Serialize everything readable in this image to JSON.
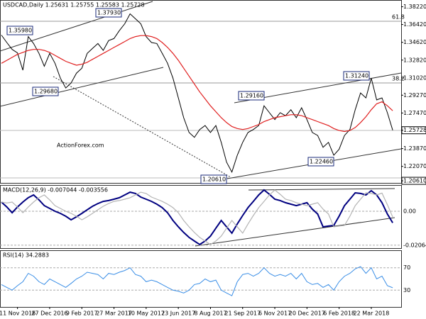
{
  "chart_data": [
    {
      "type": "line",
      "title": "USDCAD,Daily  1.25631 1.25755 1.25583 1.25728",
      "categories": [
        null,
        null,
        null,
        "11 Nov 2016",
        null,
        null,
        null,
        null,
        null,
        "27 Dec 2016",
        null,
        null,
        null,
        null,
        null,
        "9 Feb 2017",
        null,
        null,
        null,
        null,
        null,
        "27 Mar 2017",
        null,
        null,
        null,
        null,
        null,
        "10 May 2017",
        null,
        null,
        null,
        null,
        null,
        "23 Jun 2017",
        null,
        null,
        null,
        null,
        null,
        "8 Aug 2017",
        null,
        null,
        null,
        null,
        null,
        "21 Sep 2017",
        null,
        null,
        null,
        null,
        null,
        "6 Nov 2017",
        null,
        null,
        null,
        null,
        null,
        "20 Dec 2017",
        null,
        null,
        null,
        null,
        null,
        "6 Feb 2018",
        null,
        null,
        null,
        null,
        null,
        "22 Mar 2018",
        null,
        null,
        null,
        null
      ],
      "series": [
        {
          "color": "#000000",
          "values": [
            1.3535,
            1.346,
            1.339,
            1.3355,
            1.318,
            1.352,
            1.345,
            1.335,
            1.322,
            1.335,
            1.325,
            1.31,
            1.3,
            1.305,
            1.315,
            1.32,
            1.335,
            1.34,
            1.345,
            1.338,
            1.348,
            1.35,
            1.358,
            1.365,
            1.375,
            1.37,
            1.365,
            1.352,
            1.346,
            1.345,
            1.335,
            1.325,
            1.31,
            1.29,
            1.27,
            1.255,
            1.25,
            1.258,
            1.262,
            1.255,
            1.262,
            1.245,
            1.225,
            1.215,
            1.232,
            1.245,
            1.255,
            1.258,
            1.262,
            1.282,
            1.275,
            1.268,
            1.275,
            1.272,
            1.278,
            1.27,
            1.28,
            1.268,
            1.255,
            1.252,
            1.24,
            1.245,
            1.232,
            1.238,
            1.252,
            1.258,
            1.278,
            1.295,
            1.29,
            1.31,
            1.288,
            1.29,
            1.275,
            1.25728
          ]
        },
        {
          "color": "#e02020",
          "values": [
            1.325,
            1.328,
            1.331,
            1.334,
            1.336,
            1.338,
            1.339,
            1.339,
            1.338,
            1.336,
            1.333,
            1.33,
            1.327,
            1.325,
            1.323,
            1.324,
            1.326,
            1.329,
            1.332,
            1.335,
            1.338,
            1.341,
            1.344,
            1.347,
            1.35,
            1.352,
            1.353,
            1.353,
            1.352,
            1.35,
            1.346,
            1.341,
            1.335,
            1.328,
            1.32,
            1.312,
            1.304,
            1.296,
            1.289,
            1.282,
            1.276,
            1.27,
            1.265,
            1.261,
            1.259,
            1.258,
            1.259,
            1.261,
            1.263,
            1.266,
            1.268,
            1.27,
            1.271,
            1.272,
            1.273,
            1.273,
            1.272,
            1.27,
            1.268,
            1.266,
            1.264,
            1.262,
            1.259,
            1.257,
            1.256,
            1.257,
            1.26,
            1.265,
            1.271,
            1.278,
            1.284,
            1.286,
            1.282,
            1.277
          ]
        }
      ],
      "ylim": [
        1.204,
        1.389
      ],
      "yticks": [
        {
          "value": 1.3822,
          "label": "1.38220"
        },
        {
          "value": 1.3642,
          "label": "1.36420"
        },
        {
          "value": 1.3462,
          "label": "1.34620"
        },
        {
          "value": 1.3282,
          "label": "1.32820"
        },
        {
          "value": 1.3102,
          "label": "1.31020"
        },
        {
          "value": 1.2927,
          "label": "1.29270"
        },
        {
          "value": 1.2747,
          "label": "1.27470"
        },
        {
          "value": 1.25728,
          "label": "1.25728"
        },
        {
          "value": 1.2387,
          "label": "1.23870"
        },
        {
          "value": 1.2207,
          "label": "1.22070"
        },
        {
          "value": 1.2061,
          "label": "1.20610"
        }
      ],
      "annotations": [
        "1.35980",
        "1.37930",
        "1.29680",
        "1.29160",
        "1.31240",
        "1.22460",
        "1.20610",
        "61.8",
        "38.2",
        "ActionForex.com"
      ]
    },
    {
      "type": "line",
      "title": "MACD(12,26,9) -0.007044 -0.003556",
      "series": [
        {
          "color": "#000080",
          "values": [
            0.0056,
            0.0026,
            -0.0009,
            0.0026,
            0.0056,
            0.0082,
            0.0099,
            0.0069,
            0.0034,
            0.0017,
            0.0,
            -0.0013,
            -0.003,
            -0.0052,
            -0.0034,
            -0.0013,
            0.0009,
            0.003,
            0.0047,
            0.006,
            0.0065,
            0.0073,
            0.0082,
            0.0099,
            0.0116,
            0.0108,
            0.0086,
            0.0073,
            0.006,
            0.0043,
            0.0022,
            -0.0009,
            -0.0056,
            -0.0095,
            -0.0129,
            -0.0159,
            -0.0181,
            -0.0202,
            -0.0181,
            -0.0151,
            -0.0103,
            -0.0056,
            -0.0095,
            -0.0133,
            -0.0077,
            -0.0026,
            0.0022,
            0.006,
            0.0099,
            0.0129,
            0.0103,
            0.0073,
            0.0065,
            0.0052,
            0.0043,
            0.0034,
            0.0043,
            0.0052,
            0.0013,
            -0.0017,
            -0.0095,
            -0.009,
            -0.0086,
            -0.003,
            0.0034,
            0.0073,
            0.0112,
            0.0108,
            0.0099,
            0.0125,
            0.0099,
            0.0052,
            -0.0017,
            -0.007044
          ]
        },
        {
          "color": "#b4b4b4",
          "values": [
            0.0056,
            0.005,
            0.0056,
            0.0026,
            -0.0009,
            0.0026,
            0.0056,
            0.0082,
            0.0099,
            0.0069,
            0.0034,
            0.0017,
            0.0,
            -0.0013,
            -0.003,
            -0.0052,
            -0.0034,
            -0.0013,
            0.0009,
            0.003,
            0.0047,
            0.006,
            0.0065,
            0.0073,
            0.0082,
            0.0099,
            0.0116,
            0.0108,
            0.0086,
            0.0073,
            0.006,
            0.0043,
            0.0022,
            -0.0009,
            -0.0056,
            -0.0095,
            -0.0129,
            -0.0159,
            -0.0181,
            -0.0202,
            -0.0181,
            -0.0151,
            -0.0103,
            -0.0056,
            -0.0095,
            -0.0133,
            -0.0077,
            -0.0026,
            0.0022,
            0.006,
            0.0099,
            0.0129,
            0.0103,
            0.0073,
            0.0065,
            0.0052,
            0.0043,
            0.0034,
            0.0043,
            0.0052,
            0.0013,
            -0.0017,
            -0.0095,
            -0.009,
            -0.0086,
            -0.003,
            0.0034,
            0.0073,
            0.0112,
            0.0108,
            0.0099,
            0.011,
            0.004,
            -0.003556
          ]
        }
      ],
      "ylim": [
        -0.0224,
        0.0155
      ],
      "yticks": [
        {
          "value": 0,
          "label": "0.00"
        },
        {
          "value": -0.020648,
          "label": "-0.020648"
        }
      ]
    },
    {
      "type": "line",
      "title": "RSI(14) 34.2883",
      "series": [
        {
          "color": "#3a8ee6",
          "values": [
            40,
            35,
            30,
            38,
            45,
            60,
            55,
            45,
            40,
            50,
            45,
            40,
            35,
            42,
            50,
            55,
            62,
            60,
            58,
            50,
            60,
            58,
            62,
            65,
            70,
            58,
            55,
            45,
            48,
            45,
            40,
            35,
            30,
            28,
            25,
            30,
            40,
            42,
            50,
            45,
            48,
            30,
            25,
            20,
            45,
            58,
            60,
            55,
            60,
            70,
            60,
            55,
            58,
            55,
            60,
            50,
            60,
            45,
            40,
            42,
            35,
            40,
            30,
            45,
            55,
            60,
            68,
            72,
            60,
            70,
            50,
            55,
            38,
            34.2883
          ]
        }
      ],
      "ylim": [
        0,
        100
      ],
      "yticks": [
        70,
        30
      ]
    }
  ]
}
